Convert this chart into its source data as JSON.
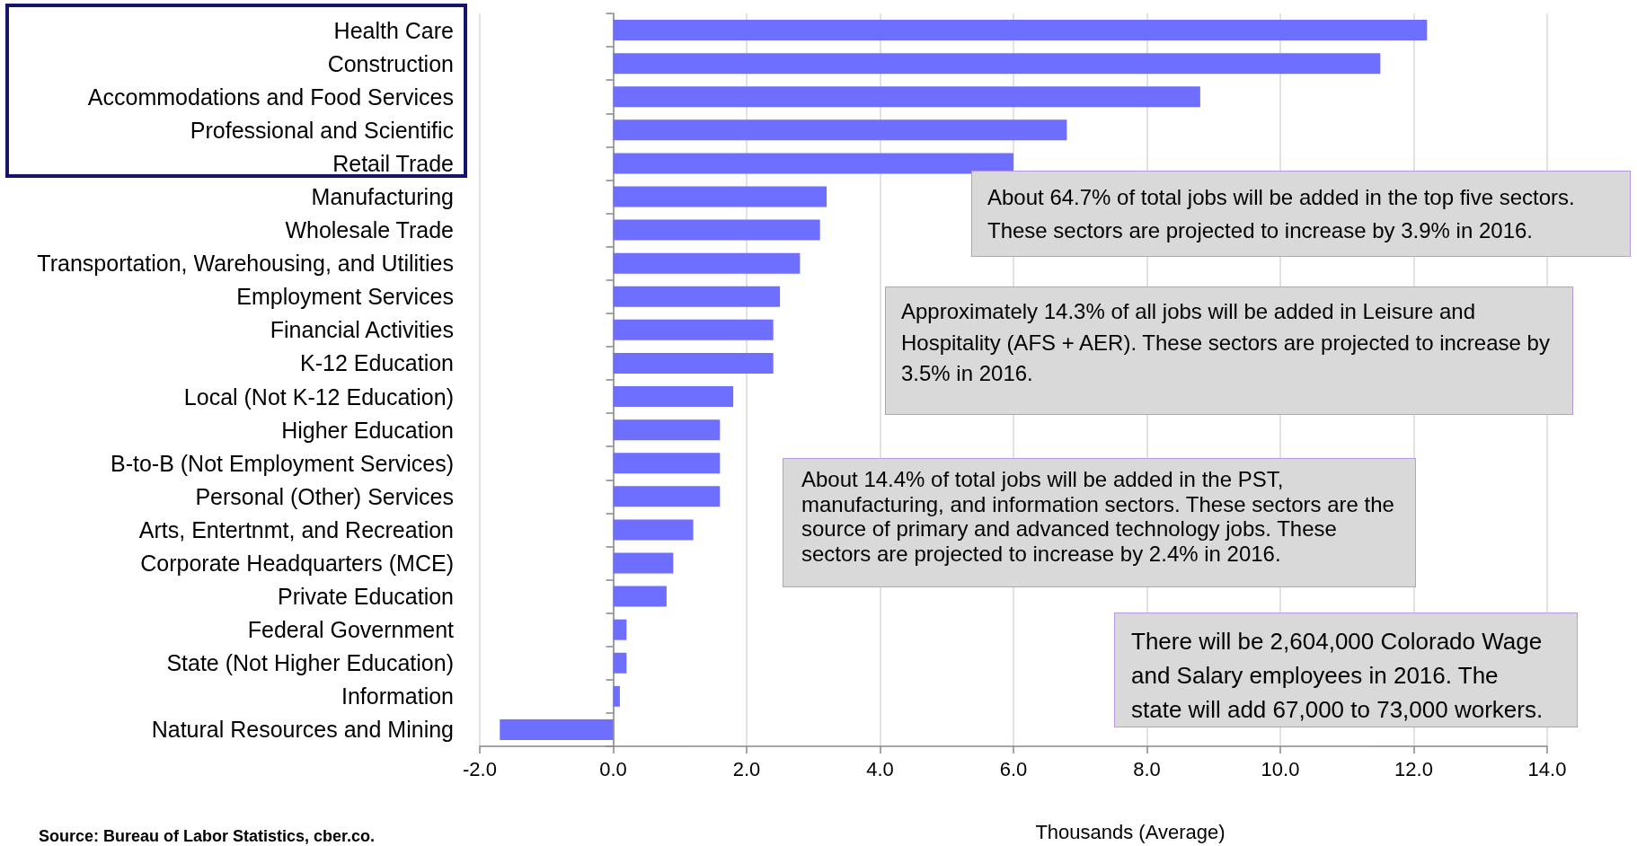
{
  "chart_data": {
    "type": "bar",
    "orientation": "horizontal",
    "categories": [
      "Health Care",
      "Construction",
      "Accommodations and Food Services",
      "Professional and Scientific",
      "Retail Trade",
      "Manufacturing",
      "Wholesale Trade",
      "Transportation, Warehousing, and Utilities",
      "Employment Services",
      "Financial Activities",
      "K-12 Education",
      "Local (Not K-12 Education)",
      "Higher Education",
      "B-to-B (Not Employment Services)",
      "Personal (Other) Services",
      "Arts, Entertnmt, and Recreation",
      "Corporate Headquarters (MCE)",
      "Private Education",
      "Federal Government",
      "State (Not Higher Education)",
      "Information",
      "Natural Resources and Mining"
    ],
    "values": [
      12.2,
      11.5,
      8.8,
      6.8,
      6.0,
      3.2,
      3.1,
      2.8,
      2.5,
      2.4,
      2.4,
      1.8,
      1.6,
      1.6,
      1.6,
      1.2,
      0.9,
      0.8,
      0.2,
      0.2,
      0.1,
      -1.7
    ],
    "color": "#6f6fff",
    "xlim": [
      -2,
      14
    ],
    "xticks": [
      {
        "value": -2,
        "label": "-2.0"
      },
      {
        "value": 0,
        "label": "0.0"
      },
      {
        "value": 2,
        "label": "2.0"
      },
      {
        "value": 4,
        "label": "4.0"
      },
      {
        "value": 6,
        "label": "6.0"
      },
      {
        "value": 8,
        "label": "8.0"
      },
      {
        "value": 10,
        "label": "10.0"
      },
      {
        "value": 12,
        "label": "12.0"
      },
      {
        "value": 14,
        "label": "14.0"
      }
    ],
    "xlabel": "Thousands (Average)",
    "grid": "x",
    "annotations": [
      "About 64.7% of total jobs will be added in the top five sectors. These sectors are projected to increase by 3.9% in 2016.",
      "Approximately 14.3% of all jobs will be added in Leisure and Hospitality (AFS + AER). These sectors are projected to increase by 3.5% in 2016.",
      "About 14.4% of total jobs will be added in the PST, manufacturing, and information sectors. These sectors are the source of primary and advanced technology jobs. These sectors are projected to increase by 2.4% in 2016.",
      "There will be 2,604,000 Colorado Wage and Salary employees in 2016. The state will add 67,000 to 73,000 workers.",
      "Source: Bureau of Labor Statistics, cber.co."
    ]
  }
}
